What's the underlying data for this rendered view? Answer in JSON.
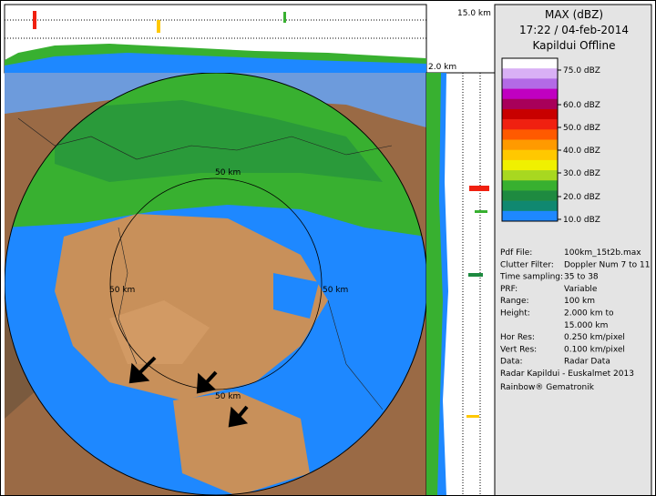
{
  "top_panel": {
    "height_label": "15.0 km"
  },
  "side_panel": {
    "height_label": "2.0 km"
  },
  "header": {
    "title": "MAX (dBZ)",
    "datetime": "17:22 / 04-feb-2014",
    "status": "Kapildui Offline"
  },
  "legend": {
    "colors": [
      "#ffffff",
      "#d9b0f5",
      "#b36ae6",
      "#c000c0",
      "#a8005a",
      "#c80000",
      "#f02010",
      "#ff5a00",
      "#ff9a00",
      "#ffc800",
      "#f0f000",
      "#a8d820",
      "#38b030",
      "#1e8a40",
      "#108870",
      "#1e88ff"
    ],
    "labels": [
      "75.0 dBZ",
      "60.0 dBZ",
      "50.0 dBZ",
      "40.0 dBZ",
      "30.0 dBZ",
      "20.0 dBZ",
      "10.0 dBZ"
    ]
  },
  "map": {
    "ring_labels": [
      "50 km",
      "50 km",
      "50 km",
      "50 km"
    ]
  },
  "info": {
    "rows": [
      {
        "label": "Pdf File:",
        "value": "100km_15t2b.max"
      },
      {
        "label": "Clutter Filter:",
        "value": "Doppler Num 7 to 11"
      },
      {
        "label": "Time sampling:",
        "value": "35 to 38"
      },
      {
        "label": "PRF:",
        "value": "Variable"
      },
      {
        "label": "Range:",
        "value": "100 km"
      },
      {
        "label": "Height:",
        "value": "2.000 km to"
      },
      {
        "label": "Hor Res:",
        "value": "0.250 km/pixel"
      },
      {
        "label": "Vert Res:",
        "value": "0.100 km/pixel"
      },
      {
        "label": "Data:",
        "value": "Radar Data"
      }
    ],
    "height_continued": "15.000 km",
    "footer": [
      "Radar Kapildui - Euskalmet 2013",
      "Rainbow® Gematronik"
    ]
  }
}
